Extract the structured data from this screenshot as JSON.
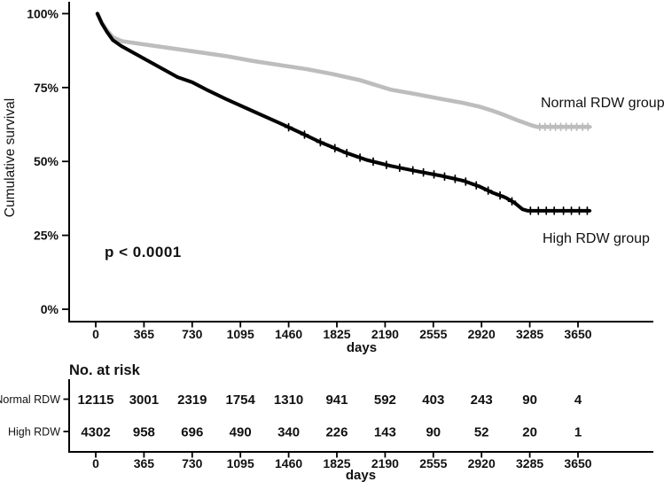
{
  "colors": {
    "background": "#ffffff",
    "axis": "#000000",
    "text": "#111111",
    "normal_group": "#bdbdbd",
    "high_group": "#000000"
  },
  "chart_data": {
    "type": "line",
    "subtype": "kaplan-meier-survival",
    "title": "",
    "ylabel": "Cumulative survival",
    "xlabel": "days",
    "annotation": "p < 0.0001",
    "xlim": [
      -205,
      4220
    ],
    "ylim": [
      0,
      100
    ],
    "grid": false,
    "legend_position": "labels-on-plot",
    "x_ticks": [
      0,
      365,
      730,
      1095,
      1460,
      1825,
      2190,
      2555,
      2920,
      3285,
      3650
    ],
    "y_ticks": [
      {
        "label": "100%",
        "value": 100
      },
      {
        "label": "75%",
        "value": 75
      },
      {
        "label": "50%",
        "value": 50
      },
      {
        "label": "25%",
        "value": 25
      },
      {
        "label": "0%",
        "value": 0
      }
    ],
    "series": [
      {
        "name": "Normal RDW group",
        "color": "#bdbdbd",
        "points": [
          [
            13,
            100
          ],
          [
            45,
            97
          ],
          [
            85,
            94.3
          ],
          [
            130,
            92
          ],
          [
            195,
            90.7
          ],
          [
            365,
            89.6
          ],
          [
            730,
            87.3
          ],
          [
            990,
            85.6
          ],
          [
            1190,
            84
          ],
          [
            1390,
            82.6
          ],
          [
            1600,
            81.2
          ],
          [
            1790,
            79.6
          ],
          [
            2000,
            77.5
          ],
          [
            2230,
            74.3
          ],
          [
            2420,
            72.8
          ],
          [
            2630,
            71
          ],
          [
            2780,
            69.8
          ],
          [
            2900,
            68.6
          ],
          [
            3000,
            67.2
          ],
          [
            3100,
            65.6
          ],
          [
            3200,
            63.8
          ],
          [
            3300,
            62.2
          ],
          [
            3340,
            61.7
          ],
          [
            3737,
            61.7
          ]
        ],
        "censor_days": [
          3360,
          3400,
          3440,
          3480,
          3520,
          3560,
          3600,
          3640,
          3685,
          3725
        ]
      },
      {
        "name": "High RDW group",
        "color": "#000000",
        "points": [
          [
            13,
            100
          ],
          [
            45,
            96.8
          ],
          [
            85,
            93.8
          ],
          [
            130,
            91
          ],
          [
            195,
            89
          ],
          [
            365,
            84.8
          ],
          [
            620,
            78.5
          ],
          [
            730,
            76.8
          ],
          [
            850,
            74
          ],
          [
            990,
            71
          ],
          [
            1190,
            67
          ],
          [
            1390,
            63
          ],
          [
            1560,
            59.5
          ],
          [
            1700,
            56.5
          ],
          [
            1890,
            53
          ],
          [
            2050,
            50.5
          ],
          [
            2230,
            48.5
          ],
          [
            2420,
            46.8
          ],
          [
            2630,
            45
          ],
          [
            2780,
            43.5
          ],
          [
            2900,
            41.6
          ],
          [
            3000,
            39.5
          ],
          [
            3100,
            37.8
          ],
          [
            3170,
            36
          ],
          [
            3230,
            33.8
          ],
          [
            3270,
            33.3
          ],
          [
            3737,
            33.3
          ]
        ],
        "censor_days": [
          1460,
          1580,
          1700,
          1810,
          1900,
          2000,
          2100,
          2200,
          2300,
          2400,
          2480,
          2560,
          2640,
          2720,
          2800,
          2880,
          2970,
          3060,
          3150,
          3290,
          3350,
          3410,
          3470,
          3540,
          3600,
          3660,
          3720
        ]
      }
    ]
  },
  "risk_table": {
    "title": "No. at risk",
    "xlabel": "days",
    "x_ticks": [
      0,
      365,
      730,
      1095,
      1460,
      1825,
      2190,
      2555,
      2920,
      3285,
      3650
    ],
    "rows": [
      {
        "label": "Normal RDW",
        "values": [
          "12115",
          "3001",
          "2319",
          "1754",
          "1310",
          "941",
          "592",
          "403",
          "243",
          "90",
          "4"
        ]
      },
      {
        "label": "High RDW",
        "values": [
          "4302",
          "958",
          "696",
          "490",
          "340",
          "226",
          "143",
          "90",
          "52",
          "20",
          "1"
        ]
      }
    ]
  }
}
